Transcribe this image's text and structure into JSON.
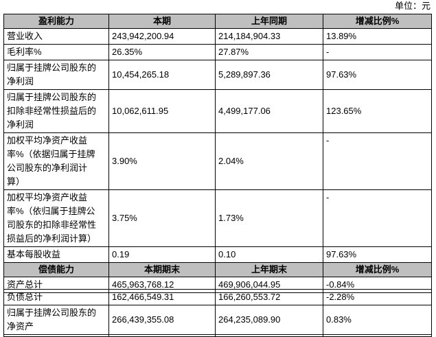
{
  "unit": "单位：元",
  "table1": {
    "header": [
      "盈利能力",
      "本期",
      "上年同期",
      "增减比例%"
    ],
    "rows": [
      [
        "营业收入",
        "243,942,200.94",
        "214,184,904.33",
        "13.89%"
      ],
      [
        "毛利率%",
        "26.35%",
        "27.87%",
        "-"
      ],
      [
        "归属于挂牌公司股东的\n净利润",
        "10,454,265.18",
        "5,289,897.36",
        "97.63%"
      ],
      [
        "归属于挂牌公司股东的\n扣除非经常性损益后的\n净利润",
        "10,062,611.95",
        "4,499,177.06",
        "123.65%"
      ],
      [
        "加权平均净资产收益\n率%（依据归属于挂牌\n公司股东的净利润计\n算）",
        "3.90%",
        "2.04%",
        "-"
      ],
      [
        "加权平均净资产收益\n率%（依归属于挂牌公\n司股东的扣除非经常性\n损益后的净利润计算）",
        "3.75%",
        "1.73%",
        "-"
      ],
      [
        "基本每股收益",
        "0.19",
        "0.10",
        "97.63%"
      ]
    ],
    "header2": [
      "偿债能力",
      "本期期末",
      "上年期末",
      "增减比例%"
    ],
    "rows2": [
      [
        "资产总计",
        "465,963,768.12",
        "469,906,044.95",
        "-0.84%"
      ]
    ]
  },
  "table2": {
    "rows": [
      [
        "负债总计",
        "162,466,549.31",
        "166,260,553.72",
        "-2.28%"
      ],
      [
        "归属于挂牌公司股东的\n净资产",
        "266,439,355.08",
        "264,235,089.90",
        "0.83%"
      ]
    ]
  }
}
